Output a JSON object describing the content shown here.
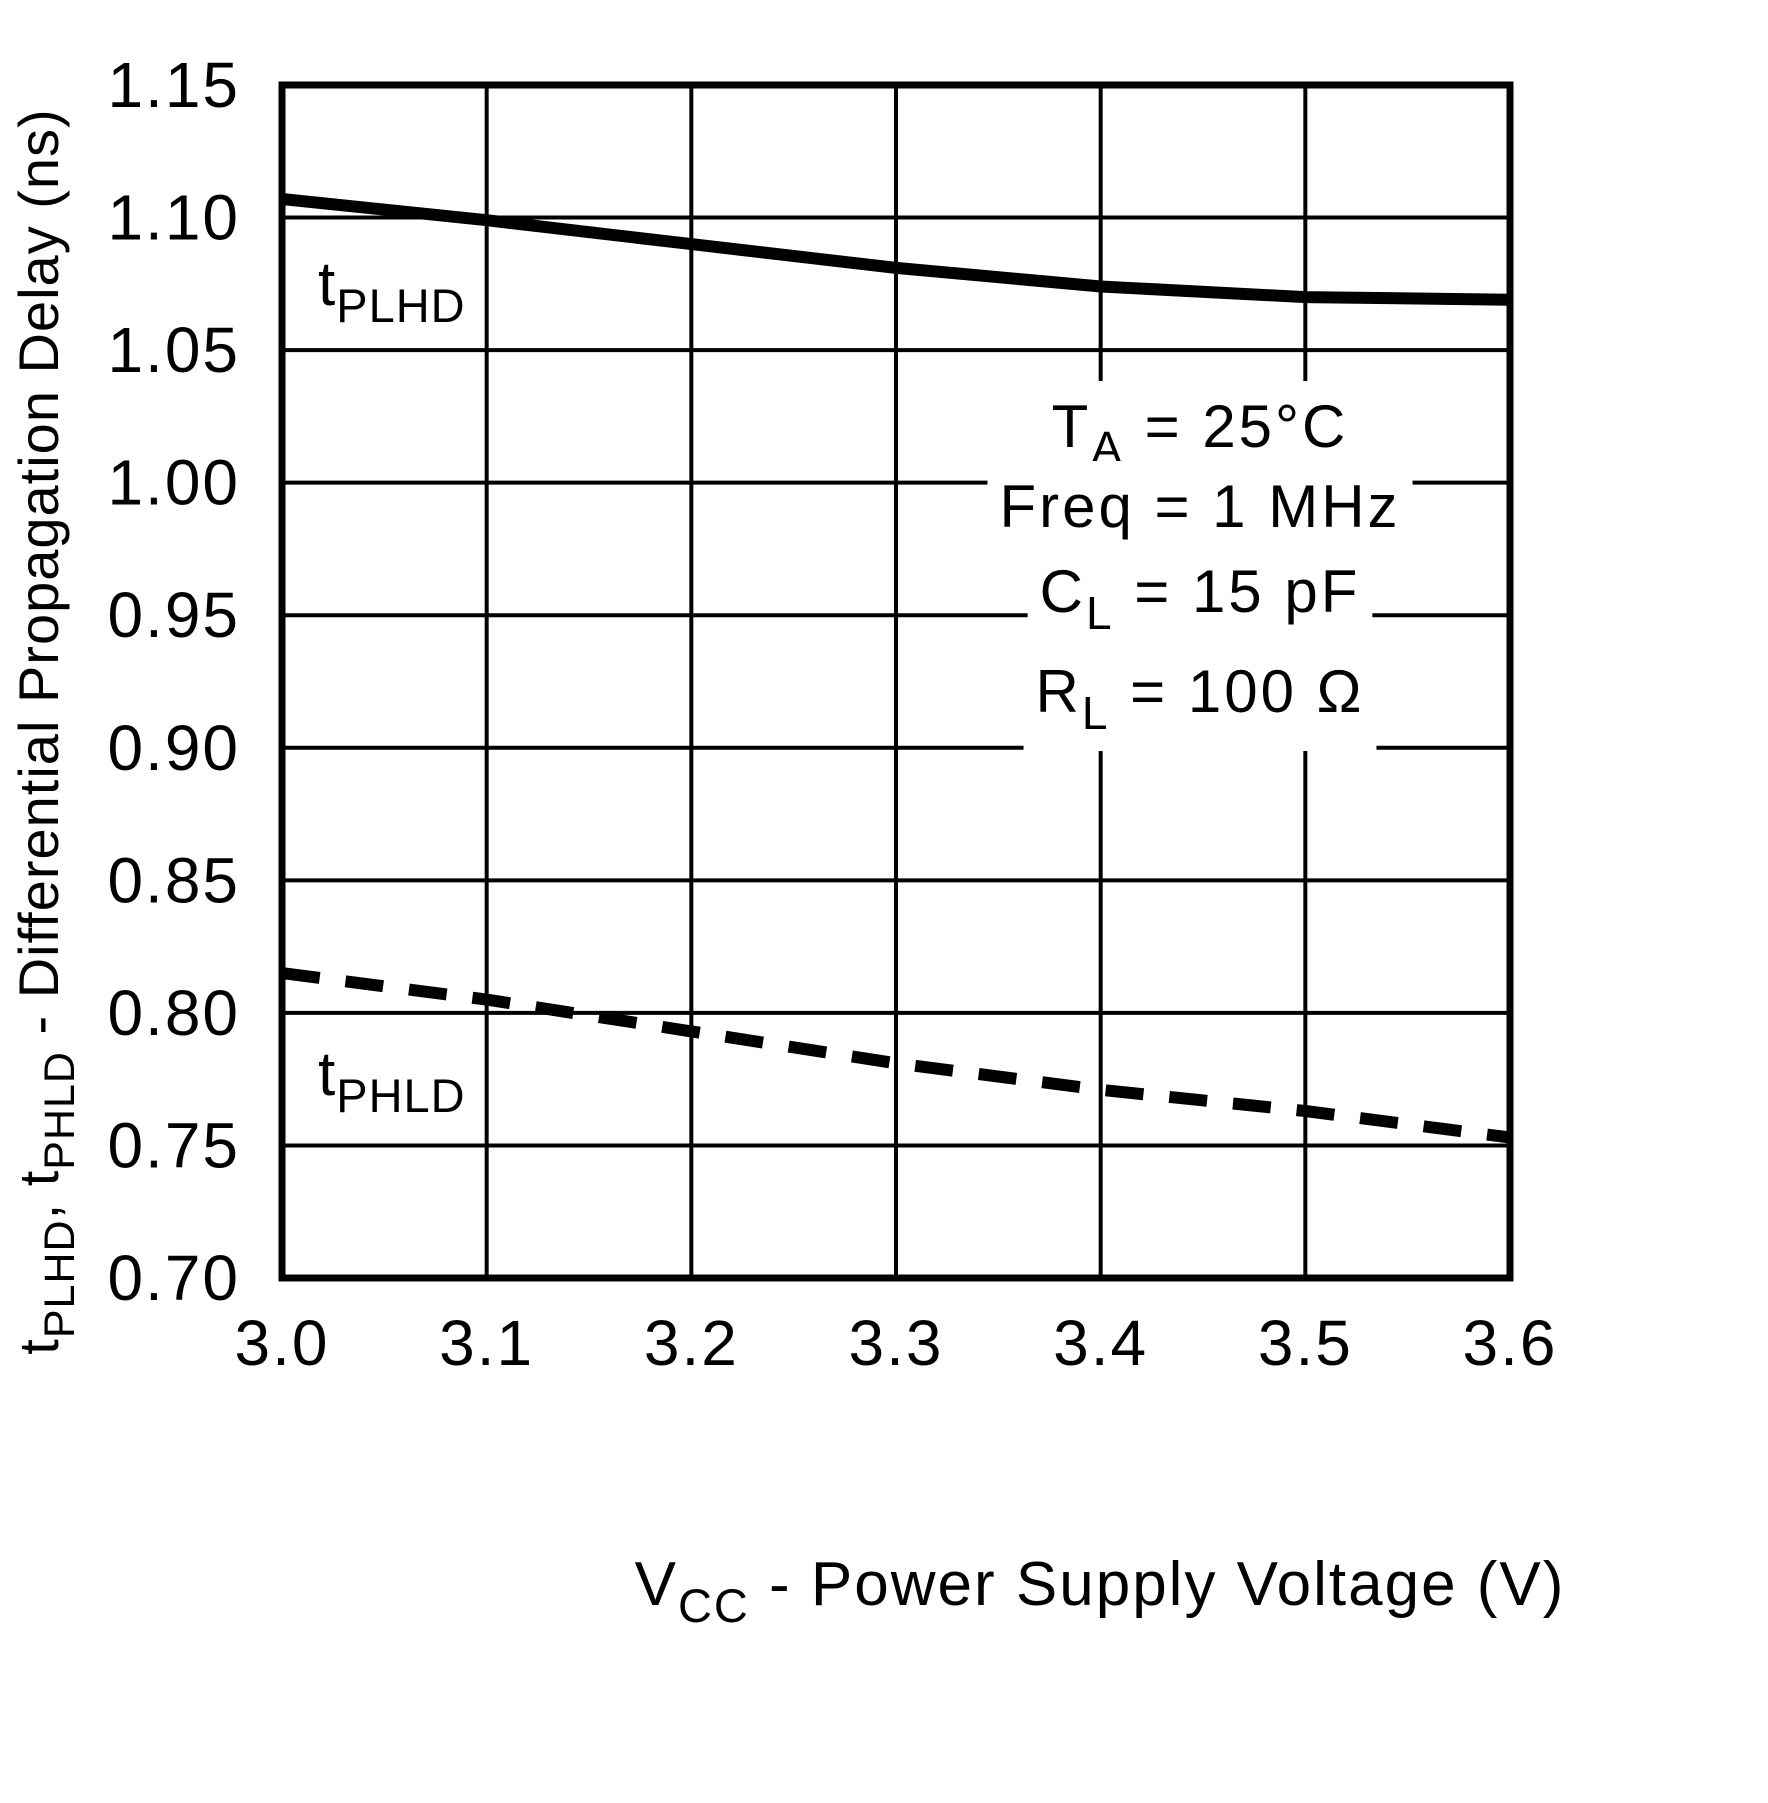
{
  "figure": {
    "background_color": "#ffffff",
    "foreground_color": "#000000"
  },
  "chart_data": {
    "type": "line",
    "x": [
      3.0,
      3.1,
      3.2,
      3.3,
      3.4,
      3.5,
      3.6
    ],
    "xlim": [
      3.0,
      3.6
    ],
    "ylim": [
      0.7,
      1.15
    ],
    "grid": "on",
    "x_tick_labels": [
      "3.0",
      "3.1",
      "3.2",
      "3.3",
      "3.4",
      "3.5",
      "3.6"
    ],
    "y_tick_labels": [
      "0.70",
      "0.75",
      "0.80",
      "0.85",
      "0.90",
      "0.95",
      "1.00",
      "1.05",
      "1.10",
      "1.15"
    ],
    "xlabel_parts": [
      {
        "text": "V"
      },
      {
        "sub": "CC"
      },
      {
        "text": " - Power Supply Voltage (V)"
      }
    ],
    "ylabel_parts": [
      {
        "text": "t"
      },
      {
        "sub": "PLHD"
      },
      {
        "text": ", t"
      },
      {
        "sub": "PHLD"
      },
      {
        "text": " - Differential Propagation Delay (ns)"
      }
    ],
    "series": [
      {
        "name": "tPLHD",
        "line_style": "solid",
        "label_parts": [
          {
            "text": "t"
          },
          {
            "sub": "PLHD"
          }
        ],
        "values": [
          1.107,
          1.099,
          1.09,
          1.081,
          1.074,
          1.07,
          1.069
        ]
      },
      {
        "name": "tPHLD",
        "line_style": "dashed",
        "label_parts": [
          {
            "text": "t"
          },
          {
            "sub": "PHLD"
          }
        ],
        "values": [
          0.815,
          0.805,
          0.793,
          0.781,
          0.771,
          0.763,
          0.753
        ]
      }
    ],
    "annotations": [
      {
        "name": "ambient-temperature",
        "parts": [
          {
            "text": "T"
          },
          {
            "sub": "A"
          },
          {
            "text": " = 25°C"
          }
        ]
      },
      {
        "name": "frequency",
        "parts": [
          {
            "text": "Freq = 1 MHz"
          }
        ]
      },
      {
        "name": "load-capacitance",
        "parts": [
          {
            "text": "C"
          },
          {
            "sub": "L"
          },
          {
            "text": " = 15 pF"
          }
        ]
      },
      {
        "name": "load-resistance",
        "parts": [
          {
            "text": "R"
          },
          {
            "sub": "L"
          },
          {
            "text": " = 100 Ω"
          }
        ]
      }
    ]
  }
}
